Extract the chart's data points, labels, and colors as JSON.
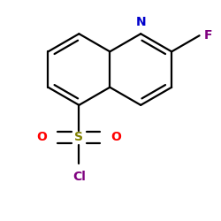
{
  "bg_color": "#ffffff",
  "bond_color": "#000000",
  "N_color": "#0000cc",
  "F_color": "#7f007f",
  "O_color": "#ff0000",
  "S_color": "#808000",
  "Cl_color": "#7f007f",
  "bond_width": 1.6,
  "figsize": [
    2.5,
    2.5
  ],
  "dpi": 100,
  "xlim": [
    -1.0,
    1.0
  ],
  "ylim": [
    -1.1,
    0.9
  ]
}
